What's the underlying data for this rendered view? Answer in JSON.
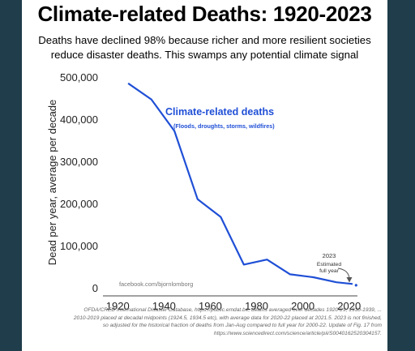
{
  "header": {
    "title": "Climate-related Deaths: 1920-2023",
    "subtitle_line1": "Deaths have declined 98% because richer and more resilient societies",
    "subtitle_line2": "reduce disaster deaths. This swamps any potential climate signal"
  },
  "chart_data": {
    "type": "line",
    "title": "Climate-related Deaths: 1920-2023",
    "xlabel": "",
    "ylabel": "Dead per year, average per decade",
    "xlim": [
      1915,
      2025
    ],
    "ylim": [
      0,
      500000
    ],
    "x_ticks": [
      1920,
      1940,
      1960,
      1980,
      2000,
      2020
    ],
    "y_ticks": [
      0,
      100000,
      200000,
      300000,
      400000,
      500000
    ],
    "y_tick_labels": [
      "0",
      "100,000",
      "200,000",
      "300,000",
      "400,000",
      "500,000"
    ],
    "grid": false,
    "series": [
      {
        "name": "Climate-related deaths",
        "color": "#1f4fd6",
        "x": [
          1924.5,
          1934.5,
          1944.5,
          1954.5,
          1964.5,
          1974.5,
          1984.5,
          1994.5,
          2004.5,
          2014.5,
          2021.5
        ],
        "y": [
          485000,
          447000,
          372000,
          210000,
          168000,
          55000,
          67000,
          32000,
          25000,
          13000,
          9000
        ]
      }
    ],
    "series_label": "Climate-related deaths",
    "series_sublabel": "(Floods, droughts, storms, wildfires)",
    "estimate_point": {
      "x": 2023,
      "y": 6000,
      "label_year": "2023",
      "label_line1": "Estimated",
      "label_line2": "full year"
    },
    "watermark": "facebook.com/bjornlomborg"
  },
  "colors": {
    "line": "#1f4fd6",
    "axis": "#444444",
    "background": "#1f3d4a"
  },
  "footnote": {
    "text": "OFDA/CRED International Disaster Database, https://public.emdat.be, deaths averaged over decades 1920-29, 1930-1939, ... 2010-2019 placed at decadal midpoints (1924.5, 1934.5 etc), with average data for 2020-22 placed at 2021.5. 2023 is not finished, so adjusted for the historical fraction of deaths from Jan-Aug compared to full year for 2000-22. Update of Fig. 17 from https://www.sciencedirect.com/science/article/pii/S0040162520304157."
  }
}
